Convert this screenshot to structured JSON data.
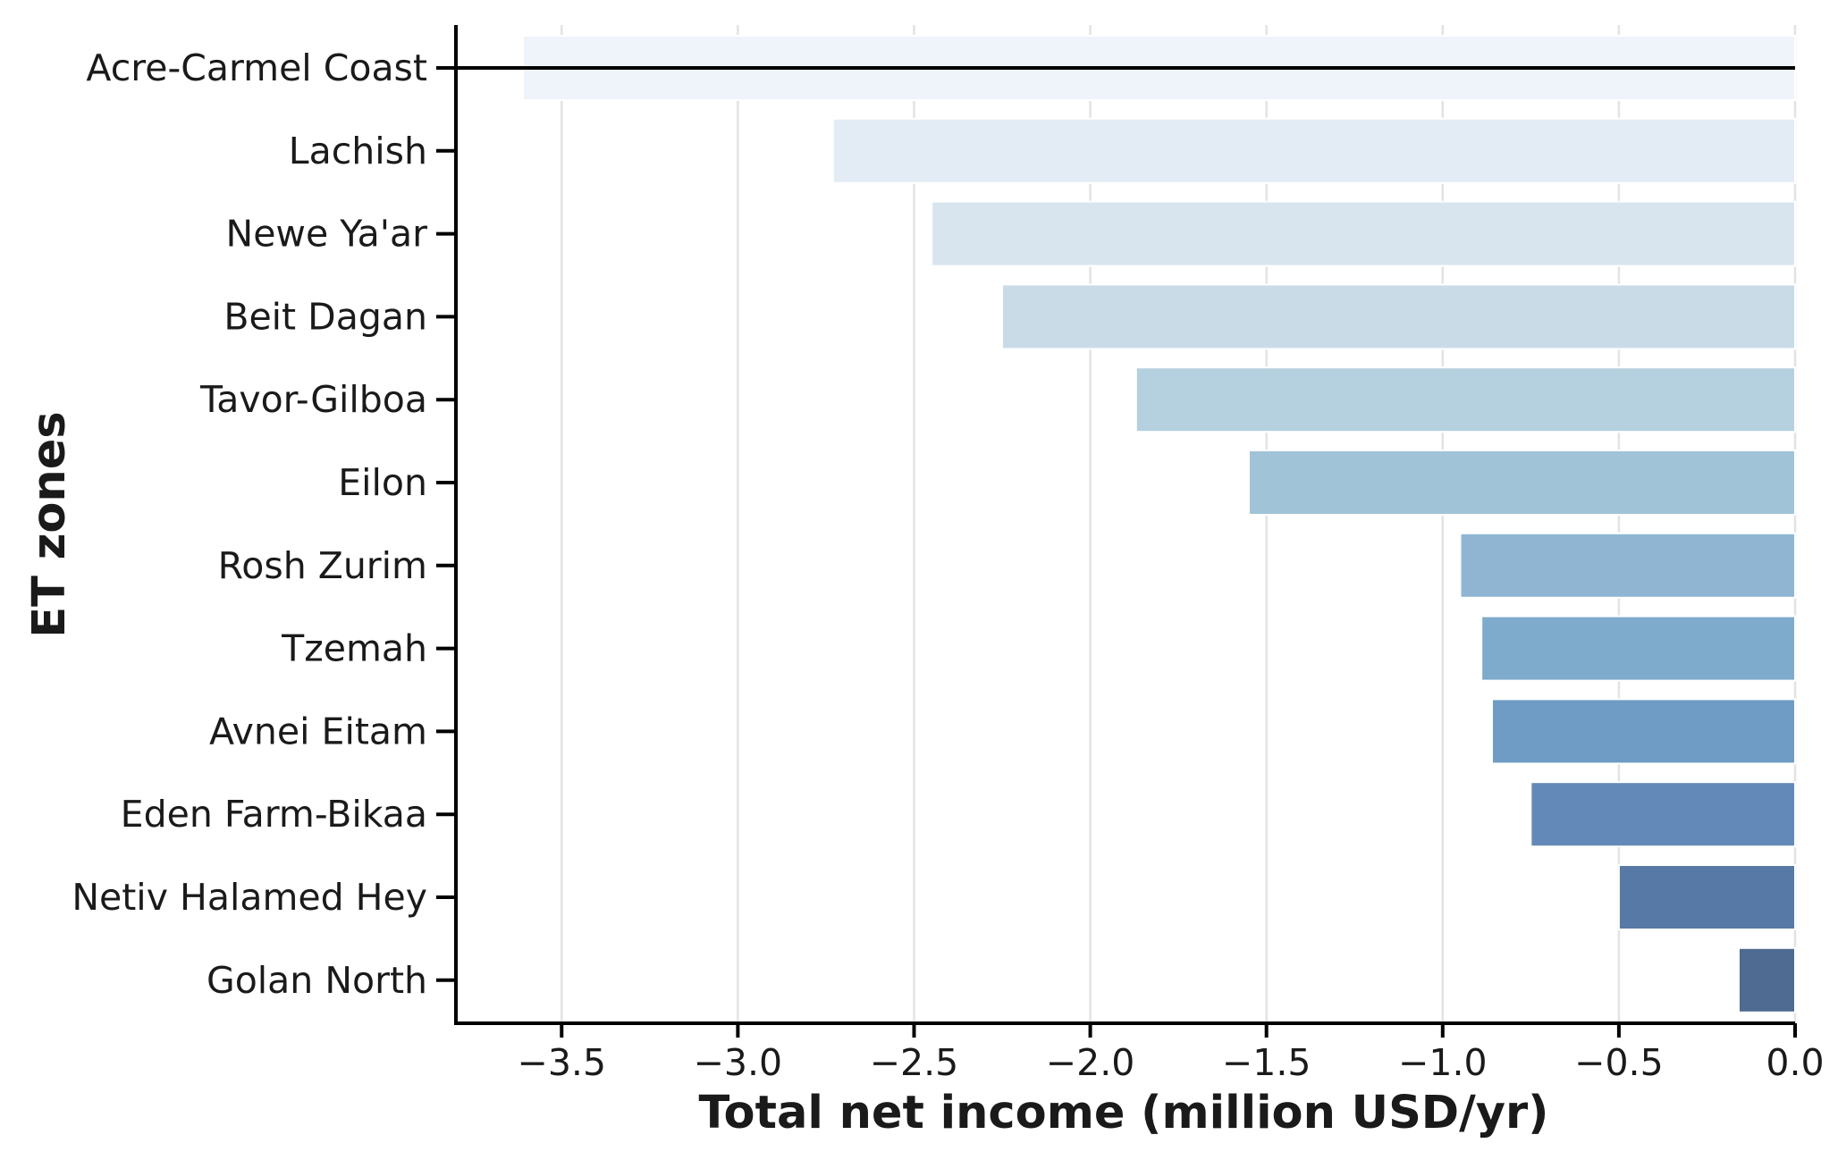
{
  "chart_data": {
    "type": "bar",
    "orientation": "horizontal",
    "title": "",
    "xlabel": "Total net income (million USD/yr)",
    "ylabel": "ET zones",
    "xlim": [
      -3.8,
      0.0
    ],
    "xticks": [
      -3.5,
      -3.0,
      -2.5,
      -2.0,
      -1.5,
      -1.0,
      -0.5,
      0.0
    ],
    "xtick_labels": [
      "−3.5",
      "−3.0",
      "−2.5",
      "−2.0",
      "−1.5",
      "−1.0",
      "−0.5",
      "0.0"
    ],
    "grid": "vertical",
    "categories": [
      "Acre-Carmel Coast",
      "Lachish",
      "Newe Ya'ar",
      "Beit Dagan",
      "Tavor-Gilboa",
      "Eilon",
      "Rosh Zurim",
      "Tzemah",
      "Avnei Eitam",
      "Eden Farm-Bikaa",
      "Netiv Halamed Hey",
      "Golan North"
    ],
    "values": [
      -3.61,
      -2.73,
      -2.45,
      -2.25,
      -1.87,
      -1.55,
      -0.95,
      -0.89,
      -0.86,
      -0.75,
      -0.5,
      -0.16
    ],
    "colors": [
      "#eef4f9",
      "#e3ecf4",
      "#d8e5ef",
      "#c8dbe7",
      "#b5d0de",
      "#a0c3d8",
      "#8fb5d3",
      "#7eaacc",
      "#6f9cc4",
      "#6389b8",
      "#5779a6",
      "#506b92"
    ],
    "highlight_line": {
      "category": "Acre-Carmel Coast",
      "color": "#000000"
    }
  }
}
